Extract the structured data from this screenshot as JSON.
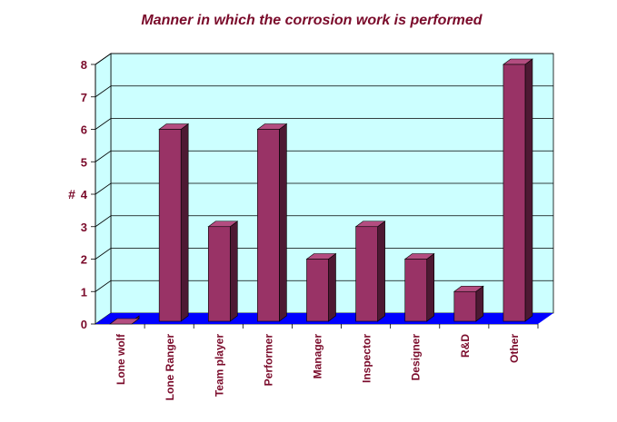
{
  "chart_data": {
    "type": "bar",
    "title": "Manner in which the corrosion work is performed",
    "xlabel": "",
    "ylabel": "#",
    "categories": [
      "Lone wolf",
      "Lone Ranger",
      "Team player",
      "Performer",
      "Manager",
      "Inspector",
      "Designer",
      "R&D",
      "Other"
    ],
    "values": [
      0,
      6,
      3,
      6,
      2,
      3,
      2,
      1,
      8
    ],
    "ylim": [
      0,
      8
    ],
    "yticks": [
      "0",
      "1",
      "2",
      "3",
      "4",
      "5",
      "6",
      "7",
      "8"
    ],
    "grid": true,
    "colors": {
      "bar_front": "#993366",
      "bar_side": "#4d1933",
      "bar_top": "#b34d80",
      "back_wall": "#ccffff",
      "floor": "#0000ff",
      "text": "#7a0a2a"
    }
  }
}
